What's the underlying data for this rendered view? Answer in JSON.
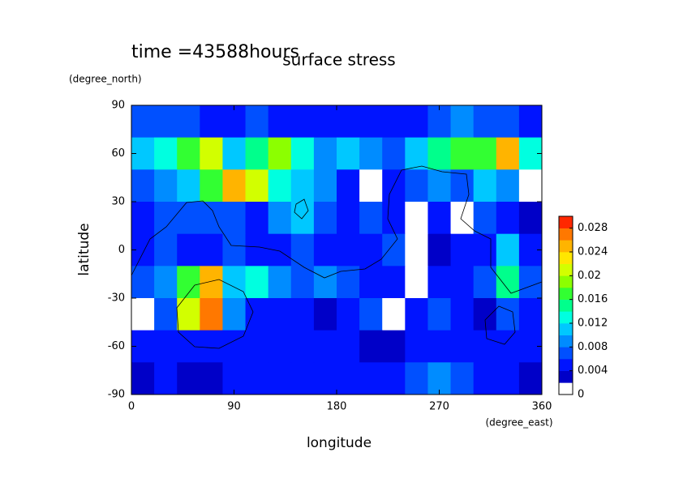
{
  "chart_data": {
    "type": "contour",
    "title": "surface stress",
    "subtitle": "time =43588hours",
    "x_label": "longitude",
    "x_units": "(degree_east)",
    "y_label": "latitude",
    "y_units": "(degree_north)",
    "xlim": [
      0,
      360
    ],
    "xticks": [
      0,
      90,
      180,
      270,
      360
    ],
    "ylim": [
      -90,
      90
    ],
    "yticks": [
      -90,
      -60,
      -30,
      0,
      30,
      60,
      90
    ],
    "x": [
      10,
      30,
      50,
      70,
      90,
      110,
      130,
      150,
      170,
      190,
      210,
      230,
      250,
      270,
      290,
      310,
      330,
      350
    ],
    "y": [
      80,
      60,
      40,
      20,
      0,
      -20,
      -40,
      -60,
      -80
    ],
    "z": [
      [
        0.006,
        0.007,
        0.006,
        0.005,
        0.005,
        0.006,
        0.005,
        0.004,
        0.005,
        0.005,
        0.004,
        0.004,
        0.005,
        0.006,
        0.008,
        0.007,
        0.006,
        0.005
      ],
      [
        0.01,
        0.012,
        0.016,
        0.02,
        0.01,
        0.014,
        0.018,
        0.012,
        0.008,
        0.01,
        0.008,
        0.006,
        0.01,
        0.014,
        0.016,
        0.016,
        0.024,
        0.012
      ],
      [
        0.006,
        0.008,
        0.01,
        0.016,
        0.024,
        0.02,
        0.012,
        0.01,
        0.008,
        0.004,
        0.001,
        0.004,
        0.006,
        0.008,
        0.006,
        0.01,
        0.008,
        0.001
      ],
      [
        0.004,
        0.006,
        0.006,
        0.006,
        0.006,
        0.004,
        0.008,
        0.01,
        0.006,
        0.004,
        0.006,
        0.004,
        0.001,
        0.004,
        0.001,
        0.006,
        0.004,
        0.003
      ],
      [
        0.004,
        0.006,
        0.004,
        0.004,
        0.006,
        0.004,
        0.004,
        0.006,
        0.004,
        0.004,
        0.004,
        0.006,
        0.001,
        0.003,
        0.004,
        0.004,
        0.01,
        0.004
      ],
      [
        0.006,
        0.008,
        0.016,
        0.024,
        0.01,
        0.012,
        0.008,
        0.006,
        0.008,
        0.006,
        0.004,
        0.004,
        0.001,
        0.004,
        0.004,
        0.006,
        0.014,
        0.006
      ],
      [
        0.001,
        0.006,
        0.02,
        0.026,
        0.008,
        0.004,
        0.004,
        0.004,
        0.003,
        0.004,
        0.006,
        0.001,
        0.004,
        0.006,
        0.004,
        0.002,
        0.006,
        0.004
      ],
      [
        0.004,
        0.004,
        0.004,
        0.004,
        0.004,
        0.004,
        0.004,
        0.004,
        0.004,
        0.004,
        0.003,
        0.003,
        0.004,
        0.004,
        0.004,
        0.004,
        0.004,
        0.004
      ],
      [
        0.003,
        0.004,
        0.003,
        0.003,
        0.004,
        0.004,
        0.004,
        0.004,
        0.004,
        0.004,
        0.004,
        0.004,
        0.006,
        0.008,
        0.006,
        0.004,
        0.004,
        0.003
      ]
    ],
    "clim": [
      0,
      0.03
    ],
    "cticks": [
      0,
      0.004,
      0.008,
      0.012,
      0.016,
      0.02,
      0.024,
      0.028
    ],
    "colors": [
      "#ffffff",
      "#0000c8",
      "#0014ff",
      "#0050ff",
      "#008cff",
      "#00c8ff",
      "#00ffe0",
      "#00ff8c",
      "#32ff32",
      "#8cff00",
      "#d2ff00",
      "#ffe600",
      "#ffb400",
      "#ff7800",
      "#ff2800"
    ]
  }
}
